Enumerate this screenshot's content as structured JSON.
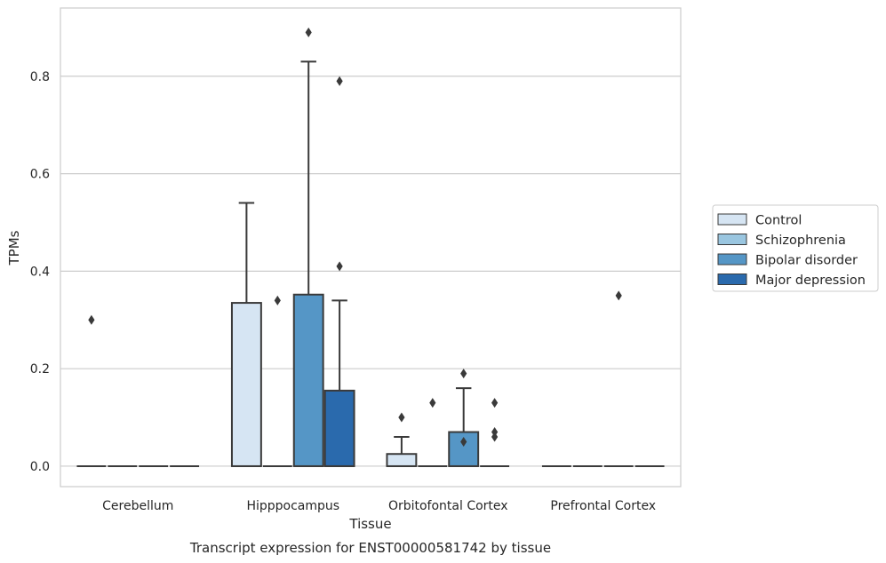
{
  "chart_data": {
    "type": "box",
    "title": "",
    "caption": "Transcript expression for ENST00000581742 by tissue",
    "xlabel": "Tissue",
    "ylabel": "TPMs",
    "ylim": [
      -0.042,
      0.94
    ],
    "yticks": [
      0.0,
      0.2,
      0.4,
      0.6,
      0.8
    ],
    "grid": "horizontal",
    "legend_position": "right",
    "categories": [
      "Cerebellum",
      "Hipppocampus",
      "Orbitofontal Cortex",
      "Prefrontal Cortex"
    ],
    "series": [
      {
        "name": "Control",
        "color": "#d6e5f3",
        "boxes": [
          {
            "q1": 0,
            "median": 0,
            "q3": 0,
            "whisker_low": 0,
            "whisker_high": 0,
            "outliers": [
              0.3
            ]
          },
          {
            "q1": 0,
            "median": 0,
            "q3": 0.335,
            "whisker_low": 0,
            "whisker_high": 0.54,
            "outliers": []
          },
          {
            "q1": 0,
            "median": 0,
            "q3": 0.025,
            "whisker_low": 0,
            "whisker_high": 0.06,
            "outliers": [
              0.1
            ]
          },
          {
            "q1": 0,
            "median": 0,
            "q3": 0,
            "whisker_low": 0,
            "whisker_high": 0,
            "outliers": []
          }
        ]
      },
      {
        "name": "Schizophrenia",
        "color": "#9ac6e0",
        "boxes": [
          {
            "q1": 0,
            "median": 0,
            "q3": 0,
            "whisker_low": 0,
            "whisker_high": 0,
            "outliers": []
          },
          {
            "q1": 0,
            "median": 0,
            "q3": 0,
            "whisker_low": 0,
            "whisker_high": 0,
            "outliers": [
              0.34
            ]
          },
          {
            "q1": 0,
            "median": 0,
            "q3": 0,
            "whisker_low": 0,
            "whisker_high": 0,
            "outliers": [
              0.13
            ]
          },
          {
            "q1": 0,
            "median": 0,
            "q3": 0,
            "whisker_low": 0,
            "whisker_high": 0,
            "outliers": []
          }
        ]
      },
      {
        "name": "Bipolar disorder",
        "color": "#5596c6",
        "boxes": [
          {
            "q1": 0,
            "median": 0,
            "q3": 0,
            "whisker_low": 0,
            "whisker_high": 0,
            "outliers": []
          },
          {
            "q1": 0,
            "median": 0,
            "q3": 0.352,
            "whisker_low": 0,
            "whisker_high": 0.83,
            "outliers": [
              0.89
            ]
          },
          {
            "q1": 0,
            "median": 0,
            "q3": 0.07,
            "whisker_low": 0,
            "whisker_high": 0.16,
            "outliers": [
              0.05,
              0.19
            ]
          },
          {
            "q1": 0,
            "median": 0,
            "q3": 0,
            "whisker_low": 0,
            "whisker_high": 0,
            "outliers": [
              0.35
            ]
          }
        ]
      },
      {
        "name": "Major depression",
        "color": "#2a6aad",
        "boxes": [
          {
            "q1": 0,
            "median": 0,
            "q3": 0,
            "whisker_low": 0,
            "whisker_high": 0,
            "outliers": []
          },
          {
            "q1": 0,
            "median": 0,
            "q3": 0.155,
            "whisker_low": 0,
            "whisker_high": 0.34,
            "outliers": [
              0.79,
              0.41
            ]
          },
          {
            "q1": 0,
            "median": 0,
            "q3": 0,
            "whisker_low": 0,
            "whisker_high": 0,
            "outliers": [
              0.13,
              0.07,
              0.06
            ]
          },
          {
            "q1": 0,
            "median": 0,
            "q3": 0,
            "whisker_low": 0,
            "whisker_high": 0,
            "outliers": []
          }
        ]
      }
    ]
  }
}
